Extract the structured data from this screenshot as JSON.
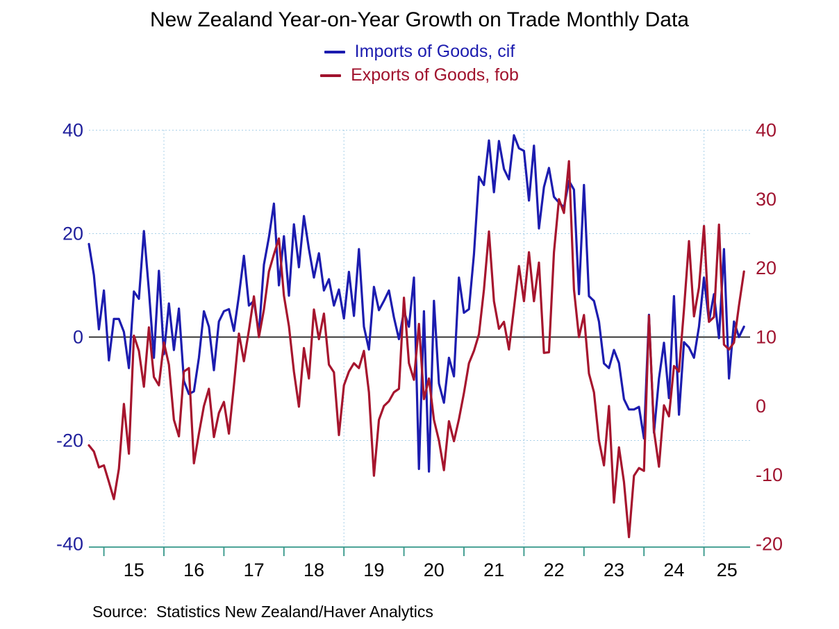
{
  "title": "New Zealand Year-on-Year Growth on Trade Monthly Data",
  "source": "Source:  Statistics New Zealand/Haver Analytics",
  "legend": [
    {
      "label": "Imports of Goods, cif",
      "color": "#1c1caf"
    },
    {
      "label": "Exports of Goods, fob",
      "color": "#a0122d"
    }
  ],
  "colors": {
    "imports_line": "#1c1caf",
    "exports_line": "#a6152e",
    "left_axis_labels": "#1f1f9c",
    "right_axis_labels": "#a01430",
    "gridline": "#a8d0e8",
    "zero_line": "#000000",
    "x_axis": "#339688",
    "x_tick_labels": "#000000"
  },
  "chart_data": {
    "type": "line",
    "title": "New Zealand Year-on-Year Growth on Trade Monthly Data",
    "x_freq": "monthly",
    "x_start": "2014-10",
    "x_end": "2025-09",
    "x_tick_labels": [
      "15",
      "16",
      "17",
      "18",
      "19",
      "20",
      "21",
      "22",
      "23",
      "24",
      "25"
    ],
    "left_axis": {
      "series": "Imports of Goods, cif",
      "ticks": [
        40,
        20,
        0,
        -20,
        -40
      ],
      "range": [
        -40,
        40
      ]
    },
    "right_axis": {
      "series": "Exports of Goods, fob",
      "ticks": [
        40,
        30,
        20,
        10,
        0,
        -10,
        -20
      ],
      "range": [
        -20,
        40
      ]
    },
    "gridlines": {
      "horizontal_left_values": [
        40,
        20,
        -20
      ],
      "vertical_years": [
        2016,
        2019,
        2022,
        2025
      ],
      "zero_line": true
    },
    "series": [
      {
        "name": "Imports of Goods, cif",
        "axis": "left",
        "color": "#1c1caf",
        "values": [
          18,
          12,
          1.5,
          9,
          -4.5,
          3.5,
          3.5,
          1,
          -6,
          8.8,
          7.4,
          20.5,
          9,
          -4,
          12.8,
          -3.3,
          6.5,
          -2.5,
          5.5,
          -8.5,
          -11,
          -10.5,
          -4,
          5,
          2,
          -6.4,
          3,
          5,
          5.4,
          1.2,
          8,
          15.7,
          6.1,
          7,
          0.7,
          14,
          19.3,
          25.8,
          10,
          19.5,
          8,
          21.8,
          13.5,
          23.4,
          17,
          11.5,
          16.2,
          9,
          11.2,
          6.1,
          9.2,
          3.6,
          12.6,
          4.1,
          17,
          2,
          -2.4,
          9.7,
          5.2,
          7,
          9,
          3.8,
          -0.4,
          5,
          2,
          11.5,
          -25.5,
          5,
          -26,
          7,
          -9,
          -12.7,
          -4,
          -7.6,
          11.5,
          4.7,
          5.4,
          16,
          31,
          29.4,
          38,
          28,
          37.9,
          32.5,
          30.5,
          39,
          36.5,
          36,
          26.4,
          37,
          21,
          29,
          32.7,
          27.1,
          26,
          25.1,
          30.2,
          28.5,
          8.3,
          29.4,
          7.9,
          7,
          3,
          -5.1,
          -6,
          -2.5,
          -5,
          -12,
          -14,
          -14,
          -13.5,
          -19.6,
          4.3,
          -18.5,
          -8,
          -1.1,
          -11.8,
          7.9,
          -15,
          -1,
          -2,
          -4,
          2,
          11.5,
          3,
          8.3,
          -0.2,
          17,
          -8,
          3,
          0,
          2
        ]
      },
      {
        "name": "Exports of Goods, fob",
        "axis": "right",
        "color": "#a6152e",
        "values": [
          -5.7,
          -6.6,
          -8.9,
          -8.6,
          -11,
          -13.5,
          -9.1,
          0.3,
          -6.9,
          10.2,
          8,
          2.8,
          11.4,
          4.2,
          3,
          9.2,
          6,
          -2,
          -4.4,
          5,
          5.5,
          -8.3,
          -4,
          0,
          2.5,
          -4.5,
          -1,
          0.6,
          -4,
          3,
          10.5,
          6.5,
          11,
          15.9,
          10,
          14,
          19.5,
          22,
          24.3,
          16,
          11.6,
          5,
          -0.1,
          8.4,
          4,
          14,
          9.7,
          13.4,
          6,
          4.9,
          -4.2,
          3,
          5,
          6.2,
          5.5,
          8,
          2,
          -10.1,
          -2,
          0,
          0.7,
          2,
          2.5,
          15.7,
          6.2,
          3.8,
          11.9,
          1,
          4,
          -2,
          -5,
          -9.3,
          -2.2,
          -5.1,
          -1.9,
          1.9,
          6.2,
          8,
          10.4,
          16.9,
          25.3,
          15.2,
          11.2,
          12.2,
          8.2,
          14.2,
          20.3,
          15.2,
          22.3,
          15.2,
          20.8,
          7.7,
          7.8,
          22.3,
          30,
          28,
          35.5,
          16.9,
          10,
          13.2,
          4.7,
          2,
          -5,
          -8.6,
          0,
          -14,
          -6,
          -11,
          -19,
          -10.1,
          -9,
          -9.4,
          13.1,
          -3.6,
          -8.8,
          0.1,
          -1.5,
          5.8,
          5,
          14,
          23.9,
          13,
          17.2,
          26.1,
          12.2,
          12.9,
          26.3,
          8.9,
          8.2,
          9.2,
          14.6,
          19.5
        ]
      }
    ]
  }
}
